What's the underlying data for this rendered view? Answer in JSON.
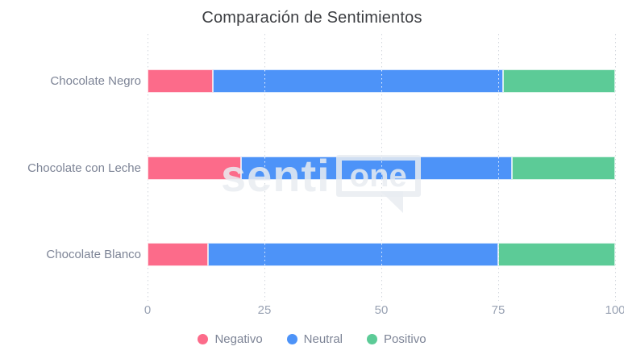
{
  "title": "Comparación de Sentimientos",
  "watermark": {
    "text_left": "senti",
    "text_boxed": "one"
  },
  "colors": {
    "negativo": "#FC6B8A",
    "neutral": "#4D93F8",
    "positivo": "#5CCB97",
    "title_text": "#3c3e42",
    "axis_text": "#9aa3b4",
    "category_text": "#7d8496",
    "gridline": "#d2d6dd"
  },
  "chart_data": {
    "type": "bar",
    "orientation": "horizontal",
    "stacked": true,
    "title": "Comparación de Sentimientos",
    "categories": [
      "Chocolate Negro",
      "Chocolate con Leche",
      "Chocolate Blanco"
    ],
    "series": [
      {
        "name": "Negativo",
        "color": "#FC6B8A",
        "values": [
          14,
          20,
          13
        ]
      },
      {
        "name": "Neutral",
        "color": "#4D93F8",
        "values": [
          62,
          58,
          62
        ]
      },
      {
        "name": "Positivo",
        "color": "#5CCB97",
        "values": [
          24,
          22,
          25
        ]
      }
    ],
    "x_tick_labels": [
      "0",
      "25",
      "50",
      "75",
      "100"
    ],
    "x_ticks": [
      0,
      25,
      50,
      75,
      100
    ],
    "xlim": [
      0,
      100
    ],
    "grid": "vertical-dotted",
    "legend_position": "bottom"
  }
}
